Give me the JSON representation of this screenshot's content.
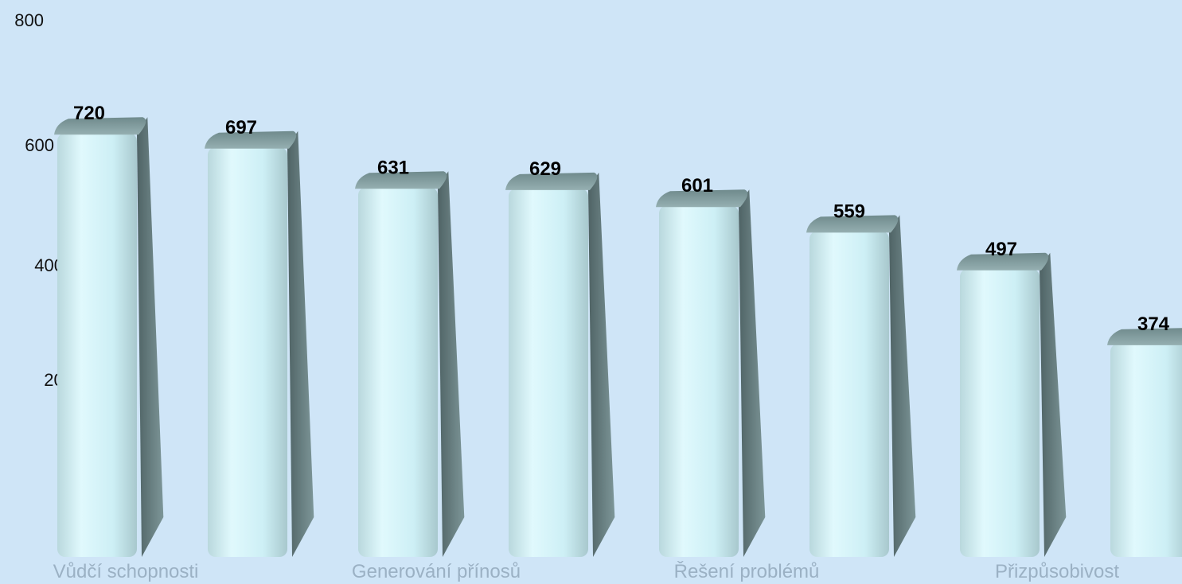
{
  "chart_data": {
    "type": "bar",
    "categories": [
      "Vůdčí schopnosti",
      "",
      "Generování přínosů",
      "",
      "Řešení problémů",
      "",
      "Přizpůsobivost",
      ""
    ],
    "values": [
      720,
      697,
      631,
      629,
      601,
      559,
      497,
      374
    ],
    "yticks": [
      "800",
      "600",
      "400",
      "200",
      "0"
    ],
    "ylim": [
      0,
      800
    ],
    "title": "",
    "xlabel": "",
    "ylabel": "",
    "grid": false,
    "legend": "none",
    "colors": {
      "background": "#cfe5f7",
      "bar_face": "#d4f2f8",
      "bar_top": "#7f9a9c",
      "bar_side": "#556a6c",
      "value_label": "#000000",
      "category_label": "#9bb1c4",
      "tick_label": "#111111"
    }
  }
}
